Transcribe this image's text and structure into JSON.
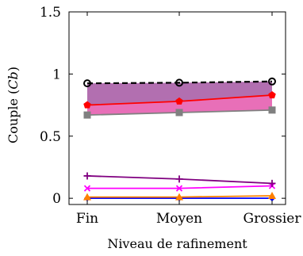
{
  "chart_data": {
    "type": "line",
    "categories": [
      "Fin",
      "Moyen",
      "Grossier"
    ],
    "xlabel": "Niveau de rafinement",
    "ylabel_prefix": "Couple (",
    "ylabel_symbol": "Cb",
    "ylabel_suffix": ")",
    "ylim": [
      -0.05,
      1.5
    ],
    "yticks": [
      0,
      0.5,
      1,
      1.5
    ],
    "ytick_labels": [
      "0",
      "0.5",
      "1",
      "1.5"
    ],
    "grid": false,
    "legend": "none",
    "bands": [
      {
        "lower_series": 2,
        "upper_series": 0,
        "color": "#b26fb0"
      },
      {
        "lower_series": 2,
        "upper_series": 1,
        "color": "#e86fb8"
      }
    ],
    "series": [
      {
        "values": [
          0.925,
          0.93,
          0.94
        ],
        "color": "#000000",
        "marker": "circle",
        "dashed": true
      },
      {
        "values": [
          0.75,
          0.78,
          0.83
        ],
        "color": "#ff0000",
        "marker": "pentagon"
      },
      {
        "values": [
          0.67,
          0.69,
          0.71
        ],
        "color": "#808080",
        "marker": "square"
      },
      {
        "values": [
          0.18,
          0.155,
          0.12
        ],
        "color": "#800080",
        "marker": "plus"
      },
      {
        "values": [
          0.08,
          0.08,
          0.1
        ],
        "color": "#ff00ff",
        "marker": "cross"
      },
      {
        "values": [
          0.01,
          0.01,
          0.02
        ],
        "color": "#ff8000",
        "marker": "triangle"
      },
      {
        "values": [
          0.0,
          0.0,
          0.0
        ],
        "color": "#0000ff",
        "marker": "diamond"
      }
    ]
  }
}
